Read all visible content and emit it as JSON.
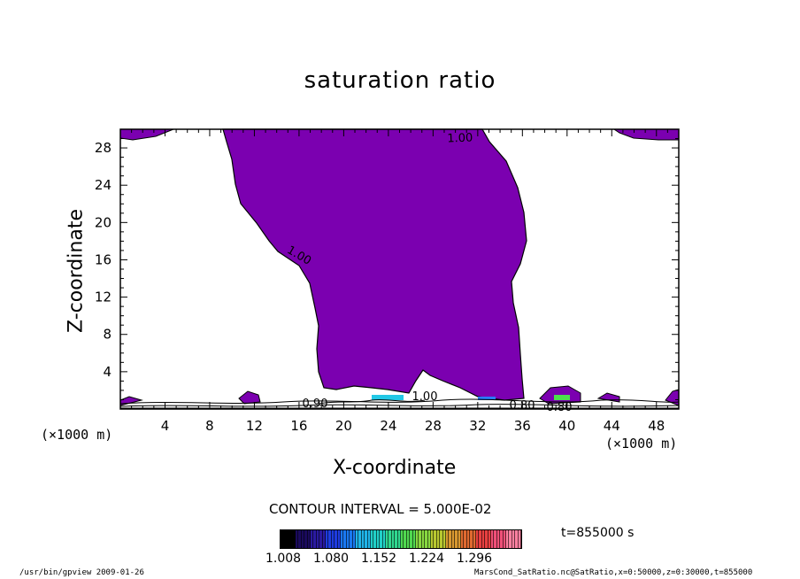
{
  "chart_data": {
    "type": "heatmap",
    "title": "saturation ratio",
    "xlabel": "X-coordinate",
    "ylabel": "Z-coordinate",
    "x_unit": "(×1000 m)",
    "xlim": [
      0,
      50
    ],
    "ylim": [
      0,
      30
    ],
    "x_ticks": [
      "4",
      "8",
      "12",
      "16",
      "20",
      "24",
      "28",
      "32",
      "36",
      "40",
      "44",
      "48"
    ],
    "y_ticks": [
      "4",
      "8",
      "12",
      "16",
      "20",
      "24",
      "28"
    ],
    "contour_labels": [
      "1.00",
      "1.00",
      "1.00",
      "0.90",
      "0.80",
      "0.80"
    ],
    "contour_interval": "CONTOUR INTERVAL = 5.000E-02",
    "colorbar_labels": [
      "1.008",
      "1.080",
      "1.152",
      "1.224",
      "1.296"
    ],
    "time_label": "t=855000 s"
  },
  "footer": {
    "left": "/usr/bin/gpview  2009-01-26",
    "right": "MarsCond_SatRatio.nc@SatRatio,x=0:50000,z=0:30000,t=855000"
  },
  "colors": {
    "fill": "#7b00b0"
  }
}
